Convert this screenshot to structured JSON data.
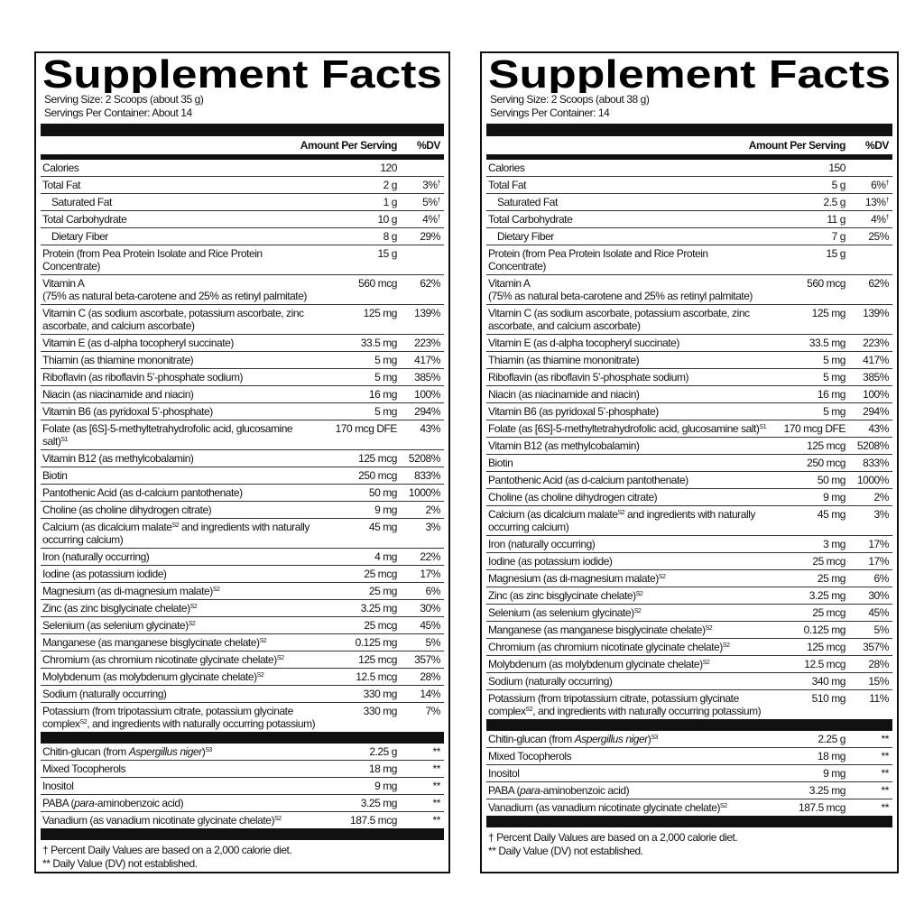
{
  "panels": [
    {
      "title": "Supplement Facts",
      "serving_size": "Serving Size: 2 Scoops (about 35 g)",
      "servings_per_container": "Servings Per Container: About 14",
      "header_amount": "Amount Per Serving",
      "header_dv": "%DV",
      "rows": [
        {
          "name": "Calories",
          "amount": "120"
        },
        {
          "name": "Total Fat",
          "amount": "2 g",
          "dv": "3%",
          "dv_note": "†"
        },
        {
          "name": "Saturated Fat",
          "indent": true,
          "amount": "1 g",
          "dv": "5%",
          "dv_note": "†"
        },
        {
          "name": "Total Carbohydrate",
          "amount": "10 g",
          "dv": "4%",
          "dv_note": "†"
        },
        {
          "name": "Dietary Fiber",
          "indent": true,
          "amount": "8 g",
          "dv": "29%"
        },
        {
          "name": "Protein (from Pea Protein Isolate and Rice Protein Concentrate)",
          "amount": "15 g"
        },
        {
          "name": "Vitamin A",
          "detail": "(75% as natural beta-carotene and 25% as retinyl palmitate)",
          "amount": "560 mcg",
          "dv": "62%"
        },
        {
          "name": "Vitamin C (as sodium ascorbate, potassium ascorbate, zinc ascorbate, and calcium ascorbate)",
          "amount": "125 mg",
          "dv": "139%"
        },
        {
          "name": "Vitamin E (as d-alpha tocopheryl succinate)",
          "amount": "33.5 mg",
          "dv": "223%"
        },
        {
          "name": "Thiamin (as thiamine mononitrate)",
          "amount": "5 mg",
          "dv": "417%"
        },
        {
          "name": "Riboflavin (as riboflavin 5’-phosphate sodium)",
          "amount": "5 mg",
          "dv": "385%"
        },
        {
          "name": "Niacin (as niacinamide and niacin)",
          "amount": "16 mg",
          "dv": "100%"
        },
        {
          "name": "Vitamin B6 (as pyridoxal 5’-phosphate)",
          "amount": "5 mg",
          "dv": "294%"
        },
        {
          "name": [
            {
              "text": "Folate (as [6S]-5-methyltetrahydrofolic acid, glucosamine salt)"
            },
            {
              "sup": "S1"
            }
          ],
          "amount": "170 mcg DFE",
          "dv": "43%"
        },
        {
          "name": "Vitamin B12 (as methylcobalamin)",
          "amount": "125 mcg",
          "dv": "5208%"
        },
        {
          "name": "Biotin",
          "amount": "250 mcg",
          "dv": "833%"
        },
        {
          "name": "Pantothenic Acid (as d-calcium pantothenate)",
          "amount": "50 mg",
          "dv": "1000%"
        },
        {
          "name": "Choline (as choline dihydrogen citrate)",
          "amount": "9 mg",
          "dv": "2%"
        },
        {
          "name": [
            {
              "text": "Calcium (as dicalcium malate"
            },
            {
              "sup": "S2"
            },
            {
              "text": " and ingredients with naturally occurring calcium)"
            }
          ],
          "amount": "45 mg",
          "dv": "3%"
        },
        {
          "name": "Iron (naturally occurring)",
          "amount": "4 mg",
          "dv": "22%"
        },
        {
          "name": "Iodine (as potassium iodide)",
          "amount": "25 mcg",
          "dv": "17%"
        },
        {
          "name": [
            {
              "text": "Magnesium (as di-magnesium malate)"
            },
            {
              "sup": "S2"
            }
          ],
          "amount": "25 mg",
          "dv": "6%"
        },
        {
          "name": [
            {
              "text": "Zinc (as zinc bisglycinate chelate)"
            },
            {
              "sup": "S2"
            }
          ],
          "amount": "3.25 mg",
          "dv": "30%"
        },
        {
          "name": [
            {
              "text": "Selenium (as selenium glycinate)"
            },
            {
              "sup": "S2"
            }
          ],
          "amount": "25 mcg",
          "dv": "45%"
        },
        {
          "name": [
            {
              "text": "Manganese (as manganese bisglycinate chelate)"
            },
            {
              "sup": "S2"
            }
          ],
          "amount": "0.125 mg",
          "dv": "5%"
        },
        {
          "name": [
            {
              "text": "Chromium (as chromium nicotinate glycinate chelate)"
            },
            {
              "sup": "S2"
            }
          ],
          "amount": "125 mcg",
          "dv": "357%"
        },
        {
          "name": [
            {
              "text": "Molybdenum (as molybdenum glycinate chelate)"
            },
            {
              "sup": "S2"
            }
          ],
          "amount": "12.5 mcg",
          "dv": "28%"
        },
        {
          "name": "Sodium (naturally occurring)",
          "amount": "330 mg",
          "dv": "14%"
        },
        {
          "name": [
            {
              "text": "Potassium (from tripotassium citrate, potassium glycinate complex"
            },
            {
              "sup": "S2"
            },
            {
              "text": ", and ingredients with naturally occurring potassium)"
            }
          ],
          "amount": "330 mg",
          "dv": "7%"
        }
      ],
      "other_rows": [
        {
          "name": [
            {
              "text": "Chitin-glucan (from "
            },
            {
              "italic": "Aspergillus niger"
            },
            {
              "text": ")"
            },
            {
              "sup": "S3"
            }
          ],
          "amount": "2.25 g",
          "dv": "**"
        },
        {
          "name": "Mixed Tocopherols",
          "amount": "18 mg",
          "dv": "**"
        },
        {
          "name": "Inositol",
          "amount": "9 mg",
          "dv": "**"
        },
        {
          "name": [
            {
              "text": "PABA ("
            },
            {
              "italic": "para"
            },
            {
              "text": "-aminobenzoic acid)"
            }
          ],
          "amount": "3.25 mg",
          "dv": "**"
        },
        {
          "name": [
            {
              "text": "Vanadium (as vanadium nicotinate glycinate chelate)"
            },
            {
              "sup": "S2"
            }
          ],
          "amount": "187.5 mcg",
          "dv": "**"
        }
      ],
      "footnotes": [
        "† Percent Daily Values are based on a 2,000 calorie diet.",
        "** Daily Value (DV) not established."
      ]
    },
    {
      "title": "Supplement Facts",
      "serving_size": "Serving Size: 2 Scoops (about 38 g)",
      "servings_per_container": "Servings Per Container: 14",
      "header_amount": "Amount Per Serving",
      "header_dv": "%DV",
      "rows": [
        {
          "name": "Calories",
          "amount": "150"
        },
        {
          "name": "Total Fat",
          "amount": "5 g",
          "dv": "6%",
          "dv_note": "†"
        },
        {
          "name": "Saturated Fat",
          "indent": true,
          "amount": "2.5 g",
          "dv": "13%",
          "dv_note": "†"
        },
        {
          "name": "Total Carbohydrate",
          "amount": "11 g",
          "dv": "4%",
          "dv_note": "†"
        },
        {
          "name": "Dietary Fiber",
          "indent": true,
          "amount": "7 g",
          "dv": "25%"
        },
        {
          "name": "Protein (from Pea Protein Isolate and Rice Protein Concentrate)",
          "amount": "15 g"
        },
        {
          "name": "Vitamin A",
          "detail": "(75% as natural beta-carotene and 25% as retinyl palmitate)",
          "amount": "560 mcg",
          "dv": "62%"
        },
        {
          "name": "Vitamin C (as sodium ascorbate, potassium ascorbate, zinc ascorbate, and calcium ascorbate)",
          "amount": "125 mg",
          "dv": "139%"
        },
        {
          "name": "Vitamin E (as d-alpha tocopheryl succinate)",
          "amount": "33.5 mg",
          "dv": "223%"
        },
        {
          "name": "Thiamin (as thiamine mononitrate)",
          "amount": "5 mg",
          "dv": "417%"
        },
        {
          "name": "Riboflavin (as riboflavin 5’-phosphate sodium)",
          "amount": "5 mg",
          "dv": "385%"
        },
        {
          "name": "Niacin (as niacinamide and niacin)",
          "amount": "16 mg",
          "dv": "100%"
        },
        {
          "name": "Vitamin B6 (as pyridoxal 5’-phosphate)",
          "amount": "5 mg",
          "dv": "294%"
        },
        {
          "name": [
            {
              "text": "Folate (as [6S]-5-methyltetrahydrofolic acid, glucosamine salt)"
            },
            {
              "sup": "S1"
            }
          ],
          "amount": "170 mcg DFE",
          "dv": "43%"
        },
        {
          "name": "Vitamin B12 (as methylcobalamin)",
          "amount": "125 mcg",
          "dv": "5208%"
        },
        {
          "name": "Biotin",
          "amount": "250 mcg",
          "dv": "833%"
        },
        {
          "name": "Pantothenic Acid (as d-calcium pantothenate)",
          "amount": "50 mg",
          "dv": "1000%"
        },
        {
          "name": "Choline (as choline dihydrogen citrate)",
          "amount": "9 mg",
          "dv": "2%"
        },
        {
          "name": [
            {
              "text": "Calcium (as dicalcium malate"
            },
            {
              "sup": "S2"
            },
            {
              "text": " and ingredients with naturally occurring calcium)"
            }
          ],
          "amount": "45 mg",
          "dv": "3%"
        },
        {
          "name": "Iron (naturally occurring)",
          "amount": "3 mg",
          "dv": "17%"
        },
        {
          "name": "Iodine (as potassium iodide)",
          "amount": "25 mcg",
          "dv": "17%"
        },
        {
          "name": [
            {
              "text": "Magnesium (as di-magnesium malate)"
            },
            {
              "sup": "S2"
            }
          ],
          "amount": "25 mg",
          "dv": "6%"
        },
        {
          "name": [
            {
              "text": "Zinc (as zinc bisglycinate chelate)"
            },
            {
              "sup": "S2"
            }
          ],
          "amount": "3.25 mg",
          "dv": "30%"
        },
        {
          "name": [
            {
              "text": "Selenium (as selenium glycinate)"
            },
            {
              "sup": "S2"
            }
          ],
          "amount": "25 mcg",
          "dv": "45%"
        },
        {
          "name": [
            {
              "text": "Manganese (as manganese bisglycinate chelate)"
            },
            {
              "sup": "S2"
            }
          ],
          "amount": "0.125 mg",
          "dv": "5%"
        },
        {
          "name": [
            {
              "text": "Chromium (as chromium nicotinate glycinate chelate)"
            },
            {
              "sup": "S2"
            }
          ],
          "amount": "125 mcg",
          "dv": "357%"
        },
        {
          "name": [
            {
              "text": "Molybdenum (as molybdenum glycinate chelate)"
            },
            {
              "sup": "S2"
            }
          ],
          "amount": "12.5 mcg",
          "dv": "28%"
        },
        {
          "name": "Sodium (naturally occurring)",
          "amount": "340 mg",
          "dv": "15%"
        },
        {
          "name": [
            {
              "text": "Potassium (from tripotassium citrate, potassium glycinate complex"
            },
            {
              "sup": "S2"
            },
            {
              "text": ", and ingredients with naturally occurring potassium)"
            }
          ],
          "amount": "510 mg",
          "dv": "11%"
        }
      ],
      "other_rows": [
        {
          "name": [
            {
              "text": "Chitin-glucan (from "
            },
            {
              "italic": "Aspergillus niger"
            },
            {
              "text": ")"
            },
            {
              "sup": "S3"
            }
          ],
          "amount": "2.25 g",
          "dv": "**"
        },
        {
          "name": "Mixed Tocopherols",
          "amount": "18 mg",
          "dv": "**"
        },
        {
          "name": "Inositol",
          "amount": "9 mg",
          "dv": "**"
        },
        {
          "name": [
            {
              "text": "PABA ("
            },
            {
              "italic": "para"
            },
            {
              "text": "-aminobenzoic acid)"
            }
          ],
          "amount": "3.25 mg",
          "dv": "**"
        },
        {
          "name": [
            {
              "text": "Vanadium (as vanadium nicotinate glycinate chelate)"
            },
            {
              "sup": "S2"
            }
          ],
          "amount": "187.5 mcg",
          "dv": "**"
        }
      ],
      "footnotes": [
        "† Percent Daily Values are based on a 2,000 calorie diet.",
        "** Daily Value (DV) not established."
      ]
    }
  ]
}
